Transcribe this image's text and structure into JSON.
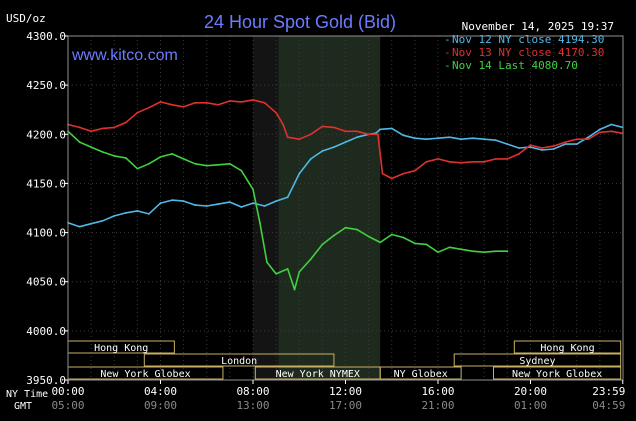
{
  "chart_data": {
    "type": "line",
    "title": "24 Hour Spot Gold (Bid)",
    "watermark": "www.kitco.com",
    "timestamp": "November 14, 2025 19:37",
    "ylabel": "USD/oz",
    "ylim": [
      3950,
      4300
    ],
    "y_ticks": [
      "4300.0",
      "4250.0",
      "4200.0",
      "4150.0",
      "4100.0",
      "4050.0",
      "4000.0",
      "3950.0"
    ],
    "x_ny_label": "NY Time",
    "x_gmt_label": "GMT",
    "x_ticks_ny": [
      "00:00",
      "04:00",
      "08:00",
      "12:00",
      "16:00",
      "20:00",
      "23:59"
    ],
    "x_ticks_gmt": [
      "05:00",
      "09:00",
      "13:00",
      "17:00",
      "21:00",
      "01:00",
      "04:59"
    ],
    "xlim": [
      0,
      24
    ],
    "shaded_regions": [
      {
        "x": [
          8.0,
          9.1
        ],
        "color": "#141414"
      },
      {
        "x": [
          9.1,
          13.5
        ],
        "color": "#1e2a1e"
      }
    ],
    "sessions": [
      {
        "label": "Hong Kong",
        "x": [
          0.0,
          4.6
        ],
        "row": 0
      },
      {
        "label": "Hong Kong",
        "x": [
          19.3,
          23.9
        ],
        "row": 0
      },
      {
        "label": "London",
        "x": [
          3.3,
          11.5
        ],
        "row": 1
      },
      {
        "label": "Sydney",
        "x": [
          16.7,
          23.9
        ],
        "row": 1
      },
      {
        "label": "New York Globex",
        "x": [
          0.0,
          6.7
        ],
        "row": 2
      },
      {
        "label": "New York NYMEX",
        "x": [
          8.1,
          13.5
        ],
        "row": 2
      },
      {
        "label": "NY Globex",
        "x": [
          13.5,
          17.0
        ],
        "row": 2
      },
      {
        "label": "New York Globex",
        "x": [
          18.4,
          23.9
        ],
        "row": 2
      }
    ],
    "series": [
      {
        "name": "Nov 12 NY close 4194.30",
        "color": "#4fb8e6",
        "x": [
          0,
          0.5,
          1,
          1.5,
          2,
          2.5,
          3,
          3.5,
          4,
          4.5,
          5,
          5.5,
          6,
          6.5,
          7,
          7.5,
          8,
          8.5,
          9,
          9.5,
          10,
          10.5,
          11,
          11.5,
          12,
          12.5,
          13,
          13.3,
          13.5,
          14,
          14.5,
          15,
          15.5,
          16,
          16.5,
          17,
          17.5,
          18,
          18.5,
          19,
          19.5,
          20,
          20.5,
          21,
          21.5,
          22,
          22.5,
          23,
          23.5,
          23.99
        ],
        "y": [
          4110,
          4106,
          4109,
          4112,
          4117,
          4120,
          4122,
          4119,
          4130,
          4133,
          4132,
          4128,
          4127,
          4129,
          4131,
          4126,
          4130,
          4127,
          4132,
          4136,
          4160,
          4175,
          4183,
          4187,
          4192,
          4197,
          4200,
          4201,
          4205,
          4206,
          4199,
          4196,
          4195,
          4196,
          4197,
          4195,
          4196,
          4195,
          4194,
          4190,
          4186,
          4187,
          4184,
          4185,
          4190,
          4190,
          4197,
          4205,
          4210,
          4207
        ]
      },
      {
        "name": "Nov 13 NY close 4170.30",
        "color": "#e03030",
        "x": [
          0,
          0.5,
          1,
          1.5,
          2,
          2.5,
          3,
          3.5,
          4,
          4.5,
          5,
          5.5,
          6,
          6.5,
          7,
          7.5,
          8,
          8.5,
          9,
          9.3,
          9.5,
          10,
          10.5,
          11,
          11.5,
          12,
          12.5,
          13,
          13.4,
          13.6,
          14,
          14.5,
          15,
          15.5,
          16,
          16.5,
          17,
          17.5,
          18,
          18.5,
          19,
          19.5,
          20,
          20.5,
          21,
          21.5,
          22,
          22.5,
          23,
          23.5,
          23.99
        ],
        "y": [
          4210,
          4207,
          4203,
          4206,
          4207,
          4212,
          4222,
          4227,
          4233,
          4230,
          4228,
          4232,
          4232,
          4230,
          4234,
          4233,
          4235,
          4232,
          4222,
          4210,
          4197,
          4195,
          4200,
          4208,
          4207,
          4203,
          4203,
          4200,
          4200,
          4160,
          4155,
          4160,
          4163,
          4172,
          4175,
          4172,
          4171,
          4172,
          4172,
          4175,
          4175,
          4180,
          4189,
          4186,
          4188,
          4192,
          4195,
          4195,
          4202,
          4203,
          4201
        ]
      },
      {
        "name": "Nov 14 Last 4080.70",
        "color": "#40d040",
        "x": [
          0,
          0.5,
          1,
          1.5,
          2,
          2.5,
          3,
          3.5,
          4,
          4.5,
          5,
          5.5,
          6,
          6.5,
          7,
          7.5,
          8,
          8.3,
          8.6,
          9,
          9.5,
          9.8,
          10,
          10.5,
          11,
          11.5,
          12,
          12.5,
          13,
          13.5,
          14,
          14.5,
          15,
          15.5,
          16,
          16.5,
          17,
          17.5,
          18,
          18.5,
          19
        ],
        "y": [
          4203,
          4192,
          4187,
          4182,
          4178,
          4176,
          4165,
          4170,
          4177,
          4180,
          4175,
          4170,
          4168,
          4169,
          4170,
          4163,
          4144,
          4110,
          4070,
          4058,
          4063,
          4042,
          4060,
          4073,
          4088,
          4097,
          4105,
          4103,
          4096,
          4090,
          4098,
          4095,
          4089,
          4088,
          4080,
          4085,
          4083,
          4081,
          4080,
          4081,
          4081
        ]
      }
    ]
  }
}
